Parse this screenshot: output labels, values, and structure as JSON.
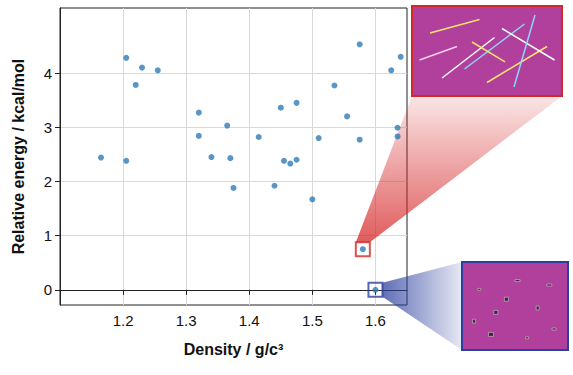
{
  "chart_data": {
    "type": "scatter",
    "x_label": "Density / g/c³",
    "y_label": "Relative energy / kcal/mol",
    "x": [
      1.165,
      1.205,
      1.205,
      1.22,
      1.23,
      1.255,
      1.32,
      1.32,
      1.34,
      1.365,
      1.37,
      1.375,
      1.415,
      1.44,
      1.45,
      1.455,
      1.465,
      1.475,
      1.475,
      1.5,
      1.51,
      1.535,
      1.555,
      1.575,
      1.575,
      1.58,
      1.6,
      1.625,
      1.635,
      1.635,
      1.64
    ],
    "values": [
      2.44,
      4.28,
      2.38,
      3.78,
      4.1,
      4.05,
      2.84,
      3.27,
      2.45,
      3.03,
      2.43,
      1.88,
      2.82,
      1.92,
      3.36,
      2.38,
      2.33,
      3.45,
      2.4,
      1.67,
      2.8,
      3.77,
      3.2,
      4.53,
      2.77,
      0.75,
      0.0,
      4.05,
      2.99,
      2.83,
      4.3
    ],
    "color": "#2f7bb6",
    "xlim": [
      1.1,
      1.65
    ],
    "ylim": [
      -0.28,
      5.2
    ],
    "xticks": [
      1.2,
      1.3,
      1.4,
      1.5,
      1.6
    ],
    "yticks": [
      0,
      1,
      2,
      3,
      4
    ],
    "grid": true,
    "highlight_points": [
      {
        "x": 1.58,
        "y": 0.75,
        "color": "#d62728"
      },
      {
        "x": 1.6,
        "y": 0.0,
        "color": "#2b3f9e"
      }
    ]
  }
}
